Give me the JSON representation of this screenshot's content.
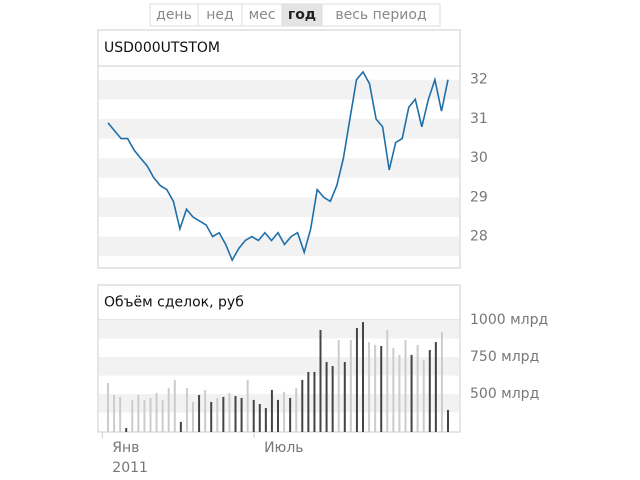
{
  "tabs": [
    "день",
    "нед",
    "мес",
    "год",
    "весь период"
  ],
  "active_tab": 3,
  "chart_data": [
    {
      "type": "line",
      "title": "USD000UTSTOM",
      "color": "#1f6fa8",
      "values": [
        30.9,
        30.7,
        30.5,
        30.5,
        30.2,
        30.0,
        29.8,
        29.5,
        29.3,
        29.2,
        28.9,
        28.2,
        28.7,
        28.5,
        28.4,
        28.3,
        28.0,
        28.1,
        27.8,
        27.4,
        27.7,
        27.9,
        28.0,
        27.9,
        28.1,
        27.9,
        28.1,
        27.8,
        28.0,
        28.1,
        27.6,
        28.2,
        29.2,
        29.0,
        28.9,
        29.3,
        30.0,
        31.0,
        32.0,
        32.2,
        31.9,
        31.0,
        30.8,
        29.7,
        30.4,
        30.5,
        31.3,
        31.5,
        30.8,
        31.5,
        32.0,
        31.2,
        32.0
      ],
      "ylim": [
        27.2,
        32.35
      ],
      "yticks": [
        28,
        29,
        30,
        31,
        32
      ],
      "grid": true
    },
    {
      "type": "bar",
      "title": "Объём сделок, руб",
      "categories": [
        null,
        null,
        null,
        null,
        "Янв 2011",
        null,
        null,
        null,
        null,
        null,
        null,
        null,
        null,
        null,
        null,
        null,
        null,
        null,
        null,
        null,
        null,
        null,
        null,
        null,
        null,
        null,
        null,
        null,
        null,
        "Июль",
        null,
        null,
        null,
        null,
        null,
        null,
        null,
        null,
        null,
        null,
        null,
        null,
        null,
        null,
        null,
        null,
        null,
        null,
        null,
        null,
        null,
        null,
        null,
        null,
        null,
        null,
        null
      ],
      "values": [
        574,
        493,
        480,
        270,
        460,
        493,
        460,
        473,
        507,
        460,
        540,
        595,
        311,
        540,
        446,
        493,
        527,
        446,
        473,
        480,
        507,
        486,
        473,
        595,
        460,
        432,
        405,
        527,
        460,
        514,
        473,
        540,
        595,
        649,
        649,
        932,
        716,
        689,
        865,
        716,
        865,
        946,
        986,
        851,
        831,
        824,
        932,
        811,
        764,
        865,
        764,
        831,
        730,
        797,
        851,
        919,
        392
      ],
      "colors": [
        "#ccc",
        "#ccc",
        "#ccc",
        "#444",
        "#ccc",
        "#ccc",
        "#ccc",
        "#ccc",
        "#ccc",
        "#ccc",
        "#ccc",
        "#ccc",
        "#444",
        "#ccc",
        "#ccc",
        "#444",
        "#ccc",
        "#444",
        "#ccc",
        "#444",
        "#ccc",
        "#444",
        "#444",
        "#ccc",
        "#444",
        "#444",
        "#444",
        "#444",
        "#444",
        "#ccc",
        "#444",
        "#ccc",
        "#444",
        "#444",
        "#444",
        "#444",
        "#444",
        "#444",
        "#ccc",
        "#444",
        "#ccc",
        "#444",
        "#444",
        "#ccc",
        "#ccc",
        "#444",
        "#ccc",
        "#ccc",
        "#ccc",
        "#ccc",
        "#444",
        "#ccc",
        "#ccc",
        "#444",
        "#444",
        "#ccc",
        "#444"
      ],
      "ylim": [
        243,
        1000
      ],
      "yticks": [
        {
          "value": 500,
          "label": "500 млрд"
        },
        {
          "value": 750,
          "label": "750 млрд"
        },
        {
          "value": 1000,
          "label": "1000 млрд"
        }
      ],
      "grid": true
    }
  ]
}
